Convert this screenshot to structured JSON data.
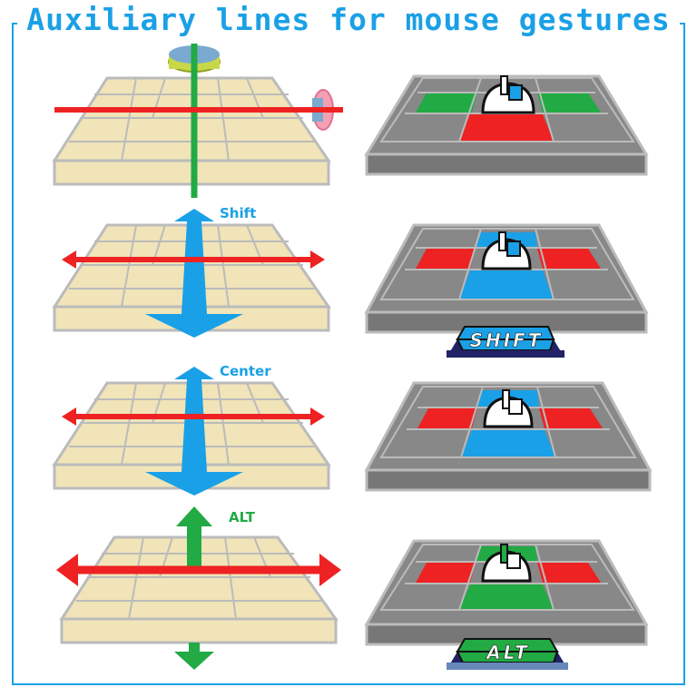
{
  "title": "Auxiliary lines for mouse gestures",
  "labels": {
    "shift": "Shift",
    "center": "Center",
    "alt": "ALT"
  },
  "keys": {
    "shift": "SHIFT",
    "alt": "ALT"
  },
  "colors": {
    "accent": "#1aa0e6",
    "red": "#ee2222",
    "green": "#22aa44",
    "blue": "#1aa0e6",
    "board": "#f0e4b8",
    "grid": "#777777"
  }
}
